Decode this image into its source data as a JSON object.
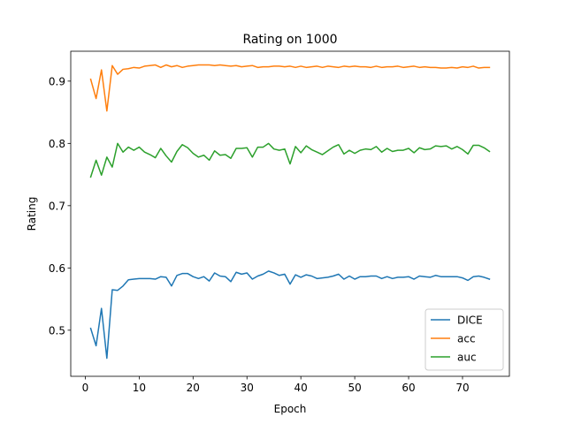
{
  "chart_data": {
    "type": "line",
    "title": "Rating on 1000",
    "xlabel": "Epoch",
    "ylabel": "Rating",
    "xlim": [
      -2.7,
      78.7
    ],
    "ylim": [
      0.426,
      0.948
    ],
    "xticks": [
      0,
      10,
      20,
      30,
      40,
      50,
      60,
      70
    ],
    "yticks": [
      0.5,
      0.6,
      0.7,
      0.8,
      0.9
    ],
    "grid": false,
    "legend_position": "lower right",
    "x": [
      1,
      2,
      3,
      4,
      5,
      6,
      7,
      8,
      9,
      10,
      11,
      12,
      13,
      14,
      15,
      16,
      17,
      18,
      19,
      20,
      21,
      22,
      23,
      24,
      25,
      26,
      27,
      28,
      29,
      30,
      31,
      32,
      33,
      34,
      35,
      36,
      37,
      38,
      39,
      40,
      41,
      42,
      43,
      44,
      45,
      46,
      47,
      48,
      49,
      50,
      51,
      52,
      53,
      54,
      55,
      56,
      57,
      58,
      59,
      60,
      61,
      62,
      63,
      64,
      65,
      66,
      67,
      68,
      69,
      70,
      71,
      72,
      73,
      74,
      75
    ],
    "series": [
      {
        "name": "DICE",
        "color": "#1f77b4",
        "values": [
          0.503,
          0.475,
          0.535,
          0.455,
          0.565,
          0.564,
          0.571,
          0.581,
          0.582,
          0.583,
          0.583,
          0.583,
          0.582,
          0.586,
          0.585,
          0.571,
          0.588,
          0.591,
          0.591,
          0.586,
          0.583,
          0.586,
          0.579,
          0.592,
          0.587,
          0.586,
          0.578,
          0.593,
          0.59,
          0.592,
          0.582,
          0.587,
          0.59,
          0.595,
          0.592,
          0.588,
          0.59,
          0.574,
          0.589,
          0.585,
          0.589,
          0.587,
          0.583,
          0.584,
          0.585,
          0.587,
          0.59,
          0.582,
          0.587,
          0.582,
          0.586,
          0.586,
          0.587,
          0.587,
          0.583,
          0.586,
          0.583,
          0.585,
          0.585,
          0.586,
          0.582,
          0.587,
          0.586,
          0.585,
          0.588,
          0.586,
          0.586,
          0.586,
          0.586,
          0.584,
          0.58,
          0.586,
          0.587,
          0.585,
          0.582
        ]
      },
      {
        "name": "acc",
        "color": "#ff7f0e",
        "values": [
          0.903,
          0.872,
          0.918,
          0.852,
          0.925,
          0.911,
          0.919,
          0.92,
          0.922,
          0.921,
          0.924,
          0.925,
          0.926,
          0.922,
          0.926,
          0.923,
          0.925,
          0.922,
          0.924,
          0.925,
          0.926,
          0.926,
          0.926,
          0.925,
          0.926,
          0.925,
          0.924,
          0.925,
          0.923,
          0.924,
          0.925,
          0.922,
          0.923,
          0.923,
          0.924,
          0.924,
          0.923,
          0.924,
          0.922,
          0.924,
          0.922,
          0.923,
          0.924,
          0.922,
          0.924,
          0.923,
          0.922,
          0.924,
          0.923,
          0.924,
          0.923,
          0.923,
          0.922,
          0.924,
          0.922,
          0.923,
          0.923,
          0.924,
          0.922,
          0.923,
          0.924,
          0.922,
          0.923,
          0.922,
          0.922,
          0.921,
          0.921,
          0.922,
          0.921,
          0.923,
          0.922,
          0.924,
          0.921,
          0.922,
          0.922
        ]
      },
      {
        "name": "auc",
        "color": "#2ca02c",
        "values": [
          0.746,
          0.773,
          0.749,
          0.778,
          0.762,
          0.8,
          0.786,
          0.794,
          0.789,
          0.794,
          0.786,
          0.782,
          0.777,
          0.792,
          0.78,
          0.77,
          0.787,
          0.798,
          0.793,
          0.784,
          0.778,
          0.781,
          0.773,
          0.788,
          0.781,
          0.782,
          0.776,
          0.792,
          0.792,
          0.793,
          0.778,
          0.794,
          0.794,
          0.8,
          0.791,
          0.789,
          0.791,
          0.767,
          0.795,
          0.785,
          0.796,
          0.79,
          0.786,
          0.782,
          0.788,
          0.794,
          0.798,
          0.783,
          0.789,
          0.784,
          0.789,
          0.791,
          0.79,
          0.795,
          0.786,
          0.792,
          0.787,
          0.789,
          0.789,
          0.792,
          0.785,
          0.793,
          0.79,
          0.791,
          0.796,
          0.795,
          0.796,
          0.791,
          0.795,
          0.79,
          0.783,
          0.797,
          0.797,
          0.793,
          0.787
        ]
      }
    ]
  }
}
